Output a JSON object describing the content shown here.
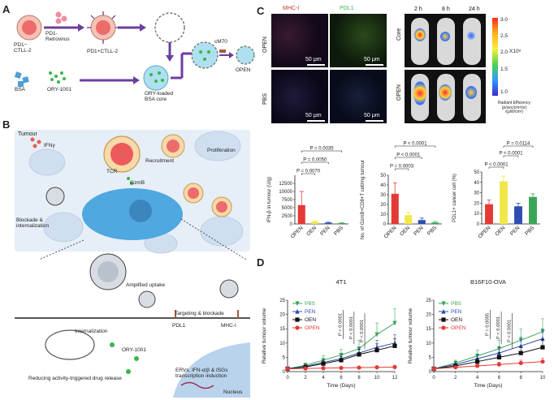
{
  "panels": {
    "A": "A",
    "B": "B",
    "C": "C",
    "D": "D"
  },
  "panelA": {
    "pd1_ctll2": "PD1−\nCTLL-2",
    "pd1_retrovirus": "PD1-\nRetrovirus",
    "pd1_ctll2_pos": "PD1+CTLL-2",
    "cm70": "cM70",
    "open": "OPEN",
    "bsa": "BSA",
    "ory1001": "ORY-1001",
    "ory_loaded": "ORY-loaded\nBSA core"
  },
  "panelB": {
    "tumour": "Tumour",
    "ifng": "IFNγ",
    "tcr": "TCR",
    "gzmb": "GzmB",
    "recruitment": "Recruitment",
    "proliferation": "Proliferation",
    "blockade": "Blockade &\ninternalization",
    "amplified": "Amplified uptake",
    "targeting": "Targeting & blockade",
    "pdl1": "PDL1",
    "mhc1": "MHC-I",
    "internalization": "Internalization",
    "ory1001": "ORY-1001",
    "reducing": "Reducing activity-triggered drug release",
    "ervs": "ERVs, IFN-α/β & ISGs\ntranscription induction",
    "nucleus": "Nucleus"
  },
  "panelC": {
    "mhc_label": "MHC-I",
    "pdl1_label": "PDL1",
    "row_open": "OPEN",
    "row_pbs": "PBS",
    "scale": "50 μm",
    "timepoints": [
      "2 h",
      "8 h",
      "24 h"
    ],
    "ivis_rows": [
      "Core",
      "OPEN"
    ],
    "colorbar_ticks": [
      "3.0",
      "2.5",
      "2.0",
      "1.5",
      "1.0"
    ],
    "colorbar_exp": "X10⁸",
    "colorbar_label": "Radiant Efficiency\n(p/sec/cm²/sr)\n/(μW/cm²)",
    "colors": {
      "red": "#e53935",
      "yellow": "#f1e64a",
      "blue": "#2c4db3",
      "green": "#3aa655"
    }
  },
  "chart_data": [
    {
      "type": "bar",
      "ylabel": "IFN-β in tumour (U/g)",
      "categories": [
        "OPEN",
        "OEN",
        "PEN",
        "PBS"
      ],
      "values": [
        5800,
        700,
        400,
        250
      ],
      "errors": [
        4200,
        300,
        150,
        100
      ],
      "ylim": [
        0,
        15000
      ],
      "yticks": [
        "0",
        "2500",
        "5000",
        "7500",
        "10000",
        "12500"
      ],
      "colors": [
        "#e53935",
        "#f1e64a",
        "#2c4db3",
        "#3aa655"
      ],
      "pvalues": [
        "P = 0.0035",
        "P = 0.0050",
        "P = 0.0070"
      ]
    },
    {
      "type": "bar",
      "ylabel": "No. of GzmB+CD8+T cell/mg tumour",
      "categories": [
        "OPEN",
        "OEN",
        "PEN",
        "PBS"
      ],
      "values": [
        31,
        9,
        4,
        1.5
      ],
      "errors": [
        11,
        3,
        2,
        1
      ],
      "ylim": [
        0,
        50
      ],
      "yticks": [
        "0",
        "10",
        "20",
        "30",
        "40",
        "50"
      ],
      "colors": [
        "#e53935",
        "#f1e64a",
        "#2c4db3",
        "#3aa655"
      ],
      "pvalues": [
        "P < 0.0001",
        "P < 0.0001",
        "P = 0.0003"
      ]
    },
    {
      "type": "bar",
      "ylabel": "PDL1+ cancer cell (%)",
      "categories": [
        "OPEN",
        "OEN",
        "PEN",
        "PBS"
      ],
      "values": [
        19,
        41,
        17,
        26
      ],
      "errors": [
        4,
        5,
        3,
        3
      ],
      "ylim": [
        0,
        50
      ],
      "yticks": [
        "0",
        "10",
        "20",
        "30",
        "40",
        "50"
      ],
      "colors": [
        "#e53935",
        "#f1e64a",
        "#2c4db3",
        "#3aa655"
      ],
      "pvalues": [
        "P < 0.0001",
        "P = 0.0114",
        "P < 0.0001"
      ]
    },
    {
      "type": "line",
      "title": "4T1",
      "xlabel": "Time (Days)",
      "ylabel": "Relative tumour volume",
      "x": [
        0,
        2,
        4,
        6,
        8,
        10,
        12
      ],
      "xticks": [
        "0",
        "2",
        "4",
        "6",
        "8",
        "10",
        "12"
      ],
      "ylim": [
        0,
        25
      ],
      "yticks": [
        "0",
        "5",
        "10",
        "15",
        "20",
        "25"
      ],
      "series": [
        {
          "name": "PBS",
          "values": [
            1,
            2.2,
            4,
            5.8,
            8,
            13,
            17
          ],
          "errors": [
            0.2,
            0.8,
            1.5,
            2,
            3,
            4,
            5
          ],
          "color": "#3aa655",
          "marker": "triangle-down"
        },
        {
          "name": "PEN",
          "values": [
            1,
            1.8,
            3.2,
            4.5,
            6.5,
            8.5,
            10
          ],
          "errors": [
            0.2,
            0.6,
            1,
            1.5,
            2,
            2.5,
            3
          ],
          "color": "#2c4db3",
          "marker": "triangle-up"
        },
        {
          "name": "OEN",
          "values": [
            1,
            1.6,
            2.8,
            4,
            6,
            7.5,
            9
          ],
          "errors": [
            0.2,
            0.5,
            0.9,
            1.3,
            1.8,
            2.2,
            2.6
          ],
          "color": "#111111",
          "marker": "square"
        },
        {
          "name": "OPEN",
          "values": [
            1,
            1.1,
            1.2,
            1.3,
            1.4,
            1.5,
            1.6
          ],
          "errors": [
            0.1,
            0.2,
            0.3,
            0.3,
            0.4,
            0.5,
            0.5
          ],
          "color": "#e53935",
          "marker": "circle"
        }
      ],
      "pvalues": [
        "P < 0.0001",
        "P < 0.0001",
        "P < 0.0001"
      ]
    },
    {
      "type": "line",
      "title": "B16F10-OVA",
      "xlabel": "Time (Days)",
      "ylabel": "Relative tumour volume",
      "x": [
        0,
        2,
        4,
        6,
        8,
        10
      ],
      "xticks": [
        "0",
        "2",
        "4",
        "6",
        "8",
        "10"
      ],
      "ylim": [
        0,
        25
      ],
      "yticks": [
        "0",
        "5",
        "10",
        "15",
        "20",
        "25"
      ],
      "series": [
        {
          "name": "PBS",
          "values": [
            1,
            3,
            5.5,
            8,
            11,
            14
          ],
          "errors": [
            0.3,
            1,
            2,
            3,
            4,
            4.5
          ],
          "color": "#3aa655",
          "marker": "triangle-down"
        },
        {
          "name": "PEN",
          "values": [
            1,
            2.5,
            4.5,
            6.5,
            9,
            11.5
          ],
          "errors": [
            0.3,
            0.9,
            1.5,
            2.2,
            3,
            3.5
          ],
          "color": "#2c4db3",
          "marker": "triangle-up"
        },
        {
          "name": "OEN",
          "values": [
            1,
            2,
            3.5,
            5,
            6.5,
            8.5
          ],
          "errors": [
            0.2,
            0.7,
            1.2,
            1.7,
            2.2,
            2.8
          ],
          "color": "#111111",
          "marker": "square"
        },
        {
          "name": "OPEN",
          "values": [
            1,
            1.5,
            2,
            2.5,
            3,
            3.5
          ],
          "errors": [
            0.1,
            0.4,
            0.6,
            0.8,
            1,
            1.2
          ],
          "color": "#e53935",
          "marker": "circle"
        }
      ],
      "pvalues": [
        "P = 0.0005",
        "P < 0.0001",
        "P < 0.0001"
      ]
    }
  ]
}
